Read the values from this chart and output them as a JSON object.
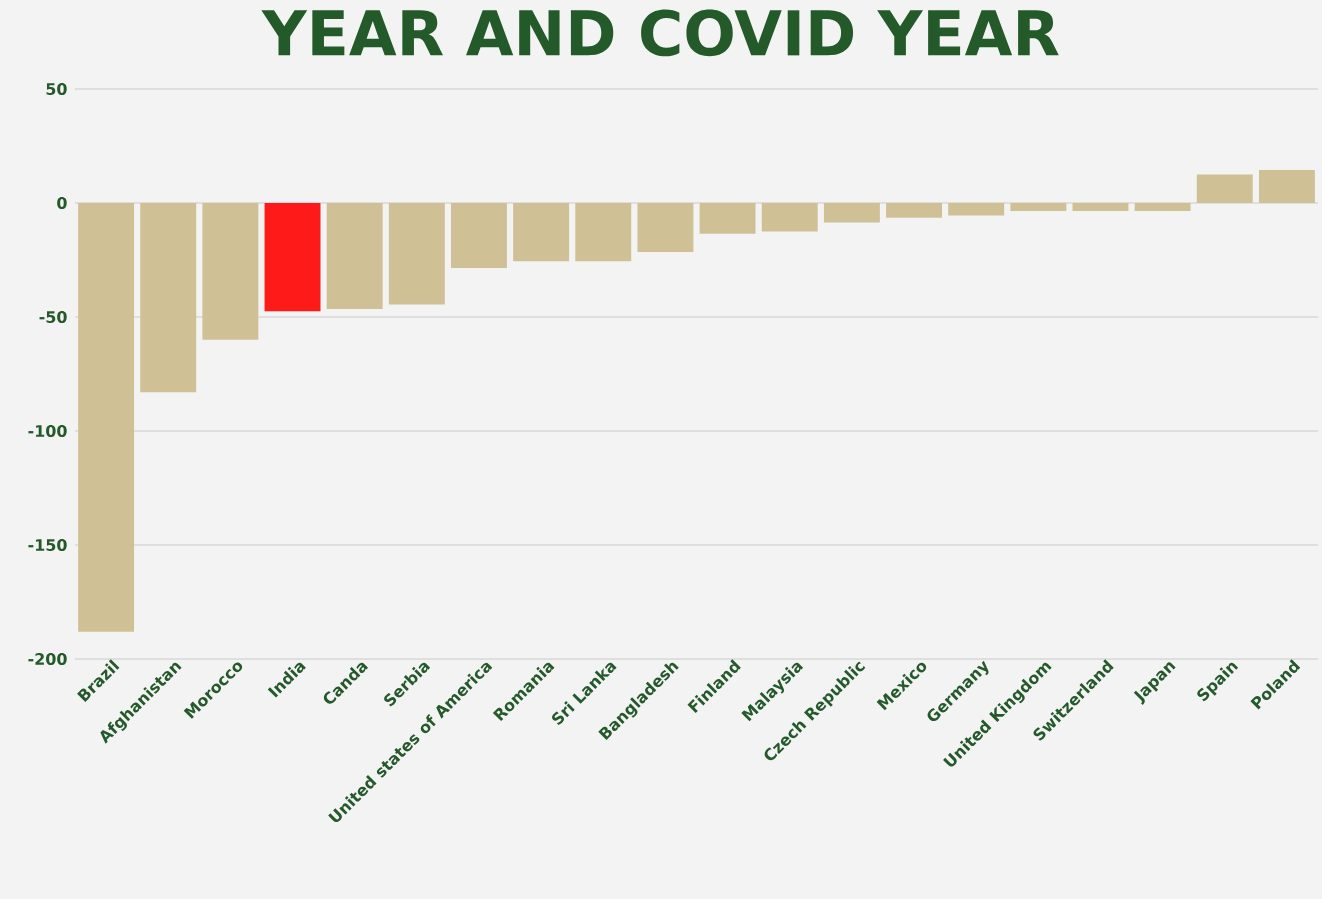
{
  "chart_data": {
    "type": "bar",
    "title": "YEAR AND COVID YEAR",
    "categories": [
      "Brazil",
      "Afghanistan",
      "Morocco",
      "India",
      "Canda",
      "Serbia",
      "United states of America",
      "Romania",
      "Sri Lanka",
      "Bangladesh",
      "Finland",
      "Malaysia",
      "Czech Republic",
      "Mexico",
      "Germany",
      "United Kingdom",
      "Switzerland",
      "Japan",
      "Spain",
      "Poland"
    ],
    "values": [
      -188,
      -83,
      -60,
      -47.5,
      -46.5,
      -44.5,
      -28.5,
      -25.5,
      -25.5,
      -21.5,
      -13.5,
      -12.5,
      -8.5,
      -6.5,
      -5.5,
      -3.5,
      -3.5,
      -3.5,
      12.5,
      14.5
    ],
    "colors": [
      "#cfc096",
      "#cfc096",
      "#cfc096",
      "#ff1a1a",
      "#cfc096",
      "#cfc096",
      "#cfc096",
      "#cfc096",
      "#cfc096",
      "#cfc096",
      "#cfc096",
      "#cfc096",
      "#cfc096",
      "#cfc096",
      "#cfc096",
      "#cfc096",
      "#cfc096",
      "#cfc096",
      "#cfc096",
      "#cfc096"
    ],
    "ylim": [
      -200,
      50
    ],
    "yticks": [
      -200,
      -150,
      -100,
      -50,
      0,
      50
    ],
    "grid": "y"
  }
}
